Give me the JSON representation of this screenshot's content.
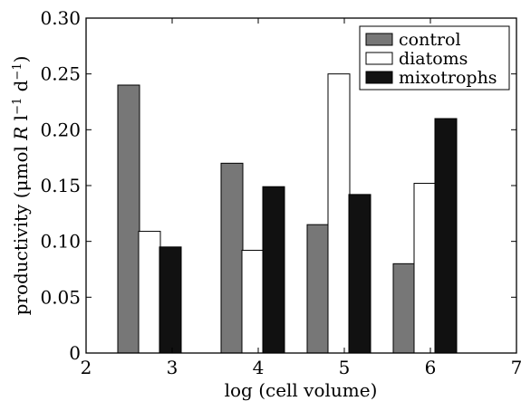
{
  "chart_data": {
    "type": "bar",
    "xlabel": "log (cell volume)",
    "ylabel_parts": {
      "pre": "productivity (μmol ",
      "italic": "R",
      "mid": " l",
      "sup1": "−1",
      "mid2": " d",
      "sup2": "−1",
      "post": ")"
    },
    "xlim": [
      2,
      7
    ],
    "ylim": [
      0,
      0.3
    ],
    "x_ticks": [
      "2",
      "3",
      "4",
      "5",
      "6",
      "7"
    ],
    "y_ticks": [
      "0",
      "0.05",
      "0.10",
      "0.15",
      "0.20",
      "0.25",
      "0.30"
    ],
    "categories": [
      2.5,
      3.7,
      4.7,
      5.7
    ],
    "series": [
      {
        "name": "control",
        "color": "#777777",
        "values": [
          0.24,
          0.17,
          0.115,
          0.08
        ]
      },
      {
        "name": "diatoms",
        "color": "#ffffff",
        "values": [
          0.109,
          0.092,
          0.25,
          0.152
        ]
      },
      {
        "name": "mixotrophs",
        "color": "#111111",
        "values": [
          0.095,
          0.149,
          0.142,
          0.21
        ]
      }
    ],
    "legend_position": "top-right",
    "grid": false
  }
}
